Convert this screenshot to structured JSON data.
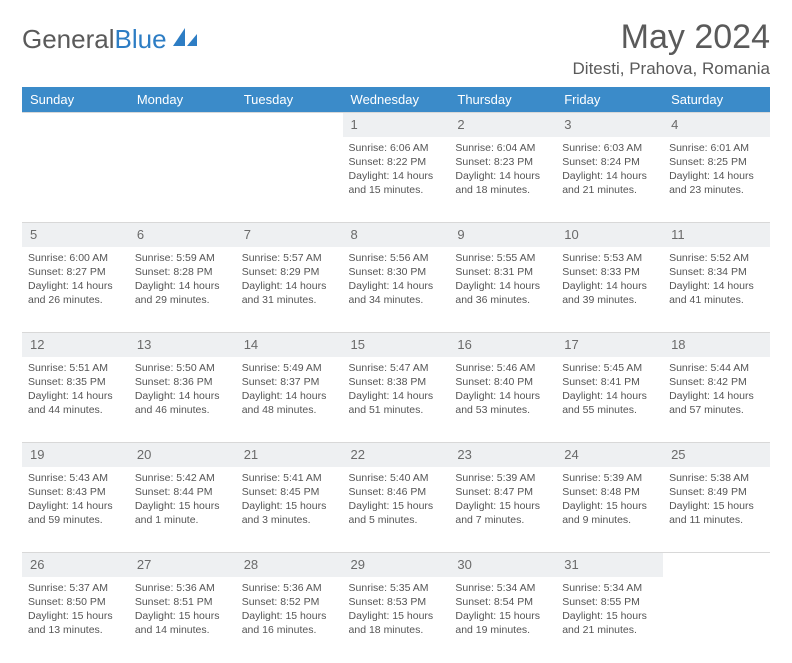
{
  "brand": {
    "part1": "General",
    "part2": "Blue"
  },
  "title": "May 2024",
  "location": "Ditesti, Prahova, Romania",
  "colors": {
    "header_bg": "#3b8bc9",
    "header_text": "#ffffff",
    "daynum_bg": "#eef0f2",
    "text": "#555555",
    "page_bg": "#ffffff",
    "logo_blue": "#2d7dc4"
  },
  "weekdays": [
    "Sunday",
    "Monday",
    "Tuesday",
    "Wednesday",
    "Thursday",
    "Friday",
    "Saturday"
  ],
  "weeks": [
    {
      "nums": [
        "",
        "",
        "",
        "1",
        "2",
        "3",
        "4"
      ],
      "cells": [
        null,
        null,
        null,
        {
          "sr": "Sunrise: 6:06 AM",
          "ss": "Sunset: 8:22 PM",
          "d1": "Daylight: 14 hours",
          "d2": "and 15 minutes."
        },
        {
          "sr": "Sunrise: 6:04 AM",
          "ss": "Sunset: 8:23 PM",
          "d1": "Daylight: 14 hours",
          "d2": "and 18 minutes."
        },
        {
          "sr": "Sunrise: 6:03 AM",
          "ss": "Sunset: 8:24 PM",
          "d1": "Daylight: 14 hours",
          "d2": "and 21 minutes."
        },
        {
          "sr": "Sunrise: 6:01 AM",
          "ss": "Sunset: 8:25 PM",
          "d1": "Daylight: 14 hours",
          "d2": "and 23 minutes."
        }
      ]
    },
    {
      "nums": [
        "5",
        "6",
        "7",
        "8",
        "9",
        "10",
        "11"
      ],
      "cells": [
        {
          "sr": "Sunrise: 6:00 AM",
          "ss": "Sunset: 8:27 PM",
          "d1": "Daylight: 14 hours",
          "d2": "and 26 minutes."
        },
        {
          "sr": "Sunrise: 5:59 AM",
          "ss": "Sunset: 8:28 PM",
          "d1": "Daylight: 14 hours",
          "d2": "and 29 minutes."
        },
        {
          "sr": "Sunrise: 5:57 AM",
          "ss": "Sunset: 8:29 PM",
          "d1": "Daylight: 14 hours",
          "d2": "and 31 minutes."
        },
        {
          "sr": "Sunrise: 5:56 AM",
          "ss": "Sunset: 8:30 PM",
          "d1": "Daylight: 14 hours",
          "d2": "and 34 minutes."
        },
        {
          "sr": "Sunrise: 5:55 AM",
          "ss": "Sunset: 8:31 PM",
          "d1": "Daylight: 14 hours",
          "d2": "and 36 minutes."
        },
        {
          "sr": "Sunrise: 5:53 AM",
          "ss": "Sunset: 8:33 PM",
          "d1": "Daylight: 14 hours",
          "d2": "and 39 minutes."
        },
        {
          "sr": "Sunrise: 5:52 AM",
          "ss": "Sunset: 8:34 PM",
          "d1": "Daylight: 14 hours",
          "d2": "and 41 minutes."
        }
      ]
    },
    {
      "nums": [
        "12",
        "13",
        "14",
        "15",
        "16",
        "17",
        "18"
      ],
      "cells": [
        {
          "sr": "Sunrise: 5:51 AM",
          "ss": "Sunset: 8:35 PM",
          "d1": "Daylight: 14 hours",
          "d2": "and 44 minutes."
        },
        {
          "sr": "Sunrise: 5:50 AM",
          "ss": "Sunset: 8:36 PM",
          "d1": "Daylight: 14 hours",
          "d2": "and 46 minutes."
        },
        {
          "sr": "Sunrise: 5:49 AM",
          "ss": "Sunset: 8:37 PM",
          "d1": "Daylight: 14 hours",
          "d2": "and 48 minutes."
        },
        {
          "sr": "Sunrise: 5:47 AM",
          "ss": "Sunset: 8:38 PM",
          "d1": "Daylight: 14 hours",
          "d2": "and 51 minutes."
        },
        {
          "sr": "Sunrise: 5:46 AM",
          "ss": "Sunset: 8:40 PM",
          "d1": "Daylight: 14 hours",
          "d2": "and 53 minutes."
        },
        {
          "sr": "Sunrise: 5:45 AM",
          "ss": "Sunset: 8:41 PM",
          "d1": "Daylight: 14 hours",
          "d2": "and 55 minutes."
        },
        {
          "sr": "Sunrise: 5:44 AM",
          "ss": "Sunset: 8:42 PM",
          "d1": "Daylight: 14 hours",
          "d2": "and 57 minutes."
        }
      ]
    },
    {
      "nums": [
        "19",
        "20",
        "21",
        "22",
        "23",
        "24",
        "25"
      ],
      "cells": [
        {
          "sr": "Sunrise: 5:43 AM",
          "ss": "Sunset: 8:43 PM",
          "d1": "Daylight: 14 hours",
          "d2": "and 59 minutes."
        },
        {
          "sr": "Sunrise: 5:42 AM",
          "ss": "Sunset: 8:44 PM",
          "d1": "Daylight: 15 hours",
          "d2": "and 1 minute."
        },
        {
          "sr": "Sunrise: 5:41 AM",
          "ss": "Sunset: 8:45 PM",
          "d1": "Daylight: 15 hours",
          "d2": "and 3 minutes."
        },
        {
          "sr": "Sunrise: 5:40 AM",
          "ss": "Sunset: 8:46 PM",
          "d1": "Daylight: 15 hours",
          "d2": "and 5 minutes."
        },
        {
          "sr": "Sunrise: 5:39 AM",
          "ss": "Sunset: 8:47 PM",
          "d1": "Daylight: 15 hours",
          "d2": "and 7 minutes."
        },
        {
          "sr": "Sunrise: 5:39 AM",
          "ss": "Sunset: 8:48 PM",
          "d1": "Daylight: 15 hours",
          "d2": "and 9 minutes."
        },
        {
          "sr": "Sunrise: 5:38 AM",
          "ss": "Sunset: 8:49 PM",
          "d1": "Daylight: 15 hours",
          "d2": "and 11 minutes."
        }
      ]
    },
    {
      "nums": [
        "26",
        "27",
        "28",
        "29",
        "30",
        "31",
        ""
      ],
      "cells": [
        {
          "sr": "Sunrise: 5:37 AM",
          "ss": "Sunset: 8:50 PM",
          "d1": "Daylight: 15 hours",
          "d2": "and 13 minutes."
        },
        {
          "sr": "Sunrise: 5:36 AM",
          "ss": "Sunset: 8:51 PM",
          "d1": "Daylight: 15 hours",
          "d2": "and 14 minutes."
        },
        {
          "sr": "Sunrise: 5:36 AM",
          "ss": "Sunset: 8:52 PM",
          "d1": "Daylight: 15 hours",
          "d2": "and 16 minutes."
        },
        {
          "sr": "Sunrise: 5:35 AM",
          "ss": "Sunset: 8:53 PM",
          "d1": "Daylight: 15 hours",
          "d2": "and 18 minutes."
        },
        {
          "sr": "Sunrise: 5:34 AM",
          "ss": "Sunset: 8:54 PM",
          "d1": "Daylight: 15 hours",
          "d2": "and 19 minutes."
        },
        {
          "sr": "Sunrise: 5:34 AM",
          "ss": "Sunset: 8:55 PM",
          "d1": "Daylight: 15 hours",
          "d2": "and 21 minutes."
        },
        null
      ]
    }
  ]
}
